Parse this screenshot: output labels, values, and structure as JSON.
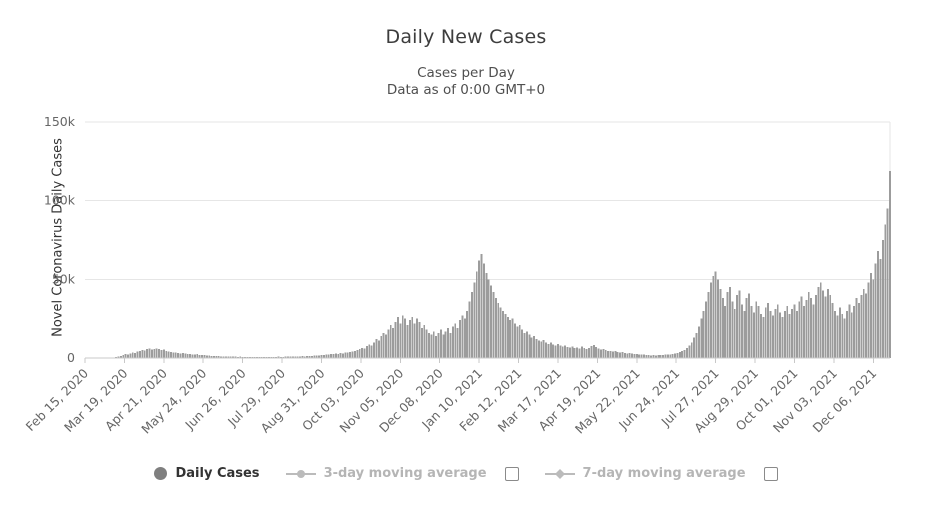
{
  "chart": {
    "title": "Daily New Cases",
    "subtitle_line1": "Cases per Day",
    "subtitle_line2": "Data as of 0:00 GMT+0",
    "y_axis_title": "Novel Coronavirus Daily Cases"
  },
  "legend": {
    "daily_cases_label": "Daily Cases",
    "avg3_label": "3-day moving average",
    "avg7_label": "7-day moving average"
  },
  "colors": {
    "bar": "#9c9c9c",
    "grid": "#e6e6e6",
    "axis_line": "#c8c8c8",
    "axis_label": "#666666",
    "legend_inactive_icon": "#bbbbbb"
  },
  "chart_data": {
    "type": "bar",
    "title": "Daily New Cases",
    "subtitle": "Cases per Day - Data as of 0:00 GMT+0",
    "xlabel": "",
    "ylabel": "Novel Coronavirus Daily Cases",
    "ylim": [
      0,
      150000
    ],
    "grid": true,
    "legend_position": "bottom",
    "y_ticks": [
      {
        "value": 0,
        "label": "0"
      },
      {
        "value": 50000,
        "label": "50k"
      },
      {
        "value": 100000,
        "label": "100k"
      },
      {
        "value": 150000,
        "label": "150k"
      }
    ],
    "sample_step_days": 2,
    "total_days": 674,
    "x_tick_labels": [
      {
        "label": "Feb 15, 2020",
        "day": 0
      },
      {
        "label": "Mar 19, 2020",
        "day": 33
      },
      {
        "label": "Apr 21, 2020",
        "day": 66
      },
      {
        "label": "May 24, 2020",
        "day": 99
      },
      {
        "label": "Jun 26, 2020",
        "day": 132
      },
      {
        "label": "Jul 29, 2020",
        "day": 165
      },
      {
        "label": "Aug 31, 2020",
        "day": 198
      },
      {
        "label": "Oct 03, 2020",
        "day": 231
      },
      {
        "label": "Nov 05, 2020",
        "day": 264
      },
      {
        "label": "Dec 08, 2020",
        "day": 297
      },
      {
        "label": "Jan 10, 2021",
        "day": 330
      },
      {
        "label": "Feb 12, 2021",
        "day": 363
      },
      {
        "label": "Mar 17, 2021",
        "day": 396
      },
      {
        "label": "Apr 19, 2021",
        "day": 429
      },
      {
        "label": "May 22, 2021",
        "day": 462
      },
      {
        "label": "Jun 24, 2021",
        "day": 495
      },
      {
        "label": "Jul 27, 2021",
        "day": 528
      },
      {
        "label": "Aug 29, 2021",
        "day": 561
      },
      {
        "label": "Oct 01, 2021",
        "day": 594
      },
      {
        "label": "Nov 03, 2021",
        "day": 627
      },
      {
        "label": "Dec 06, 2021",
        "day": 660
      }
    ],
    "series": [
      {
        "name": "Daily Cases",
        "values": [
          0,
          0,
          100,
          0,
          200,
          100,
          300,
          200,
          100,
          300,
          200,
          400,
          300,
          600,
          900,
          1300,
          1800,
          2400,
          2100,
          3000,
          3600,
          3200,
          4200,
          4600,
          5200,
          4800,
          5600,
          6000,
          5400,
          5800,
          6200,
          5600,
          5000,
          5400,
          4600,
          4200,
          3800,
          3400,
          3600,
          3200,
          2900,
          3300,
          2800,
          2500,
          2700,
          2300,
          2100,
          2400,
          2000,
          1800,
          2000,
          1700,
          1500,
          1400,
          1300,
          1200,
          1400,
          1100,
          1000,
          1100,
          900,
          800,
          950,
          850,
          700,
          800,
          650,
          600,
          700,
          600,
          500,
          650,
          550,
          700,
          600,
          500,
          650,
          700,
          600,
          750,
          650,
          800,
          700,
          750,
          800,
          900,
          850,
          1000,
          950,
          1100,
          1000,
          1200,
          1100,
          1300,
          1250,
          1400,
          1500,
          1450,
          1600,
          1800,
          2000,
          2200,
          2100,
          2500,
          2400,
          2800,
          2700,
          3100,
          3000,
          3500,
          3400,
          3900,
          4200,
          4600,
          5000,
          5600,
          6400,
          6000,
          7500,
          8500,
          8000,
          10000,
          12000,
          11000,
          14000,
          16000,
          15000,
          18000,
          21000,
          19000,
          23000,
          26000,
          22000,
          27000,
          25000,
          21000,
          24000,
          26000,
          22000,
          25000,
          23000,
          19000,
          21000,
          18000,
          16000,
          15000,
          17000,
          14000,
          16000,
          18000,
          15000,
          17000,
          19000,
          16000,
          20000,
          22000,
          19000,
          24000,
          27000,
          25000,
          30000,
          36000,
          42000,
          48000,
          55000,
          62000,
          66000,
          60000,
          54000,
          50000,
          46000,
          42000,
          38000,
          35000,
          32000,
          30000,
          28000,
          26000,
          24000,
          25000,
          22000,
          20000,
          21000,
          18000,
          16000,
          17000,
          15000,
          13000,
          14000,
          12000,
          11000,
          10500,
          11500,
          10000,
          9000,
          9800,
          8500,
          8000,
          8800,
          7800,
          7200,
          7800,
          7000,
          6600,
          7200,
          6500,
          6800,
          6200,
          7200,
          6500,
          5800,
          6400,
          7600,
          8200,
          7000,
          6000,
          5400,
          5800,
          5000,
          4600,
          4300,
          4000,
          4300,
          3800,
          3500,
          3800,
          3300,
          3000,
          3200,
          2800,
          2500,
          2700,
          2300,
          2100,
          2200,
          1900,
          1800,
          1700,
          1900,
          1600,
          1800,
          2000,
          1800,
          2100,
          2300,
          2200,
          2600,
          2900,
          3300,
          3800,
          4400,
          5200,
          6500,
          8000,
          10000,
          13000,
          16000,
          20000,
          25000,
          30000,
          36000,
          42000,
          48000,
          52000,
          55000,
          50000,
          44000,
          38000,
          33000,
          42000,
          45000,
          36000,
          31000,
          40000,
          43000,
          34000,
          30000,
          38000,
          41000,
          33000,
          29000,
          36000,
          33000,
          28000,
          26000,
          32000,
          35000,
          30000,
          27000,
          31000,
          34000,
          29000,
          26000,
          30000,
          33000,
          28000,
          31000,
          34000,
          30000,
          36000,
          39000,
          33000,
          37000,
          42000,
          38000,
          34000,
          40000,
          45000,
          48000,
          43000,
          39000,
          44000,
          40000,
          35000,
          30000,
          27000,
          32000,
          28000,
          25000,
          30000,
          34000,
          29000,
          33000,
          38000,
          35000,
          40000,
          44000,
          41000,
          48000,
          54000,
          50000,
          60000,
          68000,
          63000,
          75000,
          85000,
          95000,
          119000
        ]
      }
    ]
  }
}
